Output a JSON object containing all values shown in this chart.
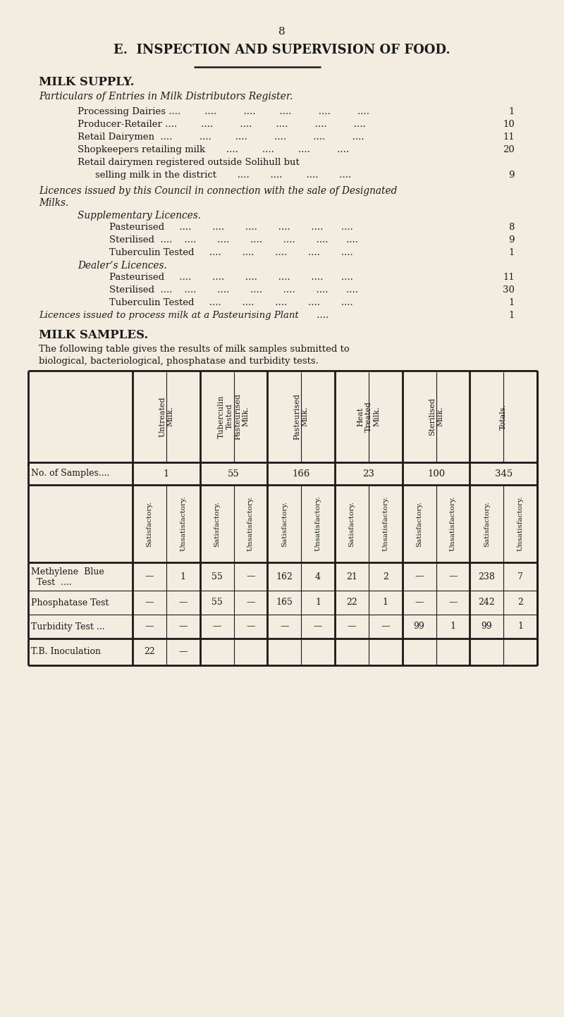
{
  "bg_color": "#f2ede0",
  "page_number": "8",
  "main_title": "E.  INSPECTION AND SUPERVISION OF FOOD.",
  "section1_title": "MILK SUPPLY.",
  "section2_italic1": "Licences issued by this Council in connection with the sale of Designated",
  "section2_italic2": "Milks.",
  "section2_sub1": "Supplementary Licences.",
  "section2_sub1_items": [
    [
      "Pasteurised",
      "8"
    ],
    [
      "Sterilised ....",
      "9"
    ],
    [
      "Tuberculin Tested",
      "1"
    ]
  ],
  "section2_sub2": "Dealer’s Licences.",
  "section2_sub2_items": [
    [
      "Pasteurised",
      "11"
    ],
    [
      "Sterilised ....",
      "30"
    ],
    [
      "Tuberculin Tested",
      "1"
    ]
  ],
  "section2_last_label": "Licences issued to process milk at a Pasteurising Plant",
  "section2_last_val": "1",
  "section3_title": "MILK SAMPLES.",
  "section3_para1": "The following table gives the results of milk samples submitted to",
  "section3_para2": "biological, bacteriological, phosphatase and turbidity tests.",
  "table_col_headers": [
    "Untreated\nMilk.",
    "Tuberculin\nTested\nPasteurised\nMilk.",
    "Pasteurised\nMilk.",
    "Heat\nTreated\nMilk.",
    "Sterilised\nMilk.",
    "Totals."
  ],
  "table_subheaders": [
    "Satisfactory.",
    "Unsatisfactory.",
    "Satisfactory.",
    "Unsatisfactory.",
    "Satisfactory.",
    "Unsatisfactory.",
    "Satisfactory.",
    "Unsatisfactory.",
    "Satisfactory.",
    "Unsatisfactory.",
    "Satisfactory.",
    "Unsatisfactory."
  ],
  "no_of_samples": [
    "1",
    "55",
    "166",
    "23",
    "100",
    "345"
  ],
  "table_data_rows": [
    {
      "label1": "Methylene  Blue",
      "label2": "  Test  ….",
      "data": [
        "—",
        "1",
        "55",
        "—",
        "162",
        "4",
        "21",
        "2",
        "—",
        "—",
        "238",
        "7"
      ]
    },
    {
      "label1": "Phosphatase Test",
      "label2": "",
      "data": [
        "—",
        "—",
        "55",
        "—",
        "165",
        "1",
        "22",
        "1",
        "—",
        "—",
        "242",
        "2"
      ]
    },
    {
      "label1": "Turbidity Test ...",
      "label2": "",
      "data": [
        "—",
        "—",
        "—",
        "—",
        "—",
        "—",
        "—",
        "—",
        "99",
        "1",
        "99",
        "1"
      ]
    }
  ],
  "tb_row_label": "T.B. Inoculation",
  "tb_row_data": [
    "22",
    "—",
    "",
    "",
    "",
    "",
    "",
    "",
    "",
    "",
    "",
    ""
  ]
}
